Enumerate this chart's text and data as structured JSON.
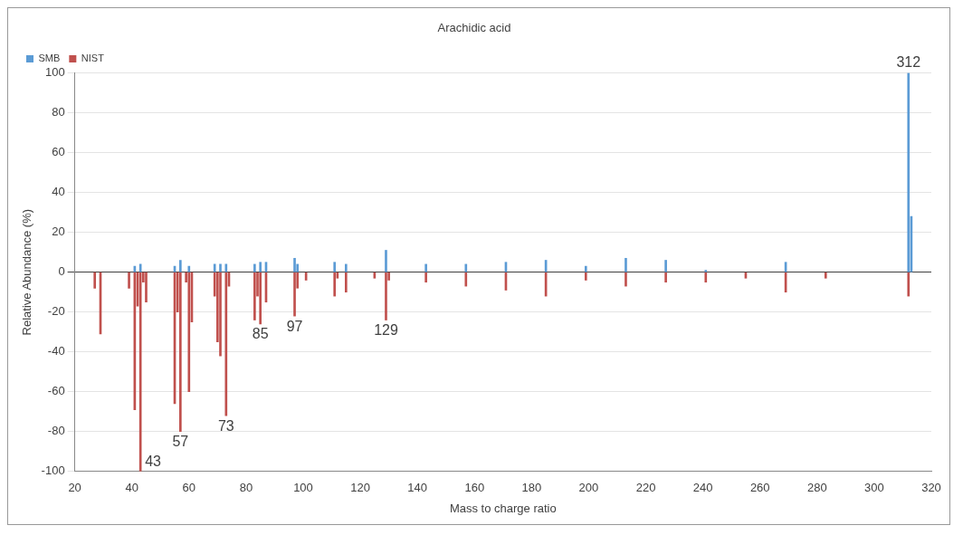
{
  "chart_data": {
    "type": "bar",
    "title": "Arachidic acid",
    "xlabel": "Mass to charge ratio",
    "ylabel": "Relative Abundance (%)",
    "series": [
      {
        "name": "SMB",
        "color": "#5b9bd5",
        "x": [
          41,
          43,
          55,
          57,
          60,
          69,
          71,
          73,
          83,
          85,
          87,
          97,
          98,
          111,
          115,
          129,
          143,
          157,
          171,
          185,
          199,
          213,
          227,
          241,
          269,
          312,
          313
        ],
        "values": [
          3,
          4,
          3,
          6,
          3,
          4,
          4,
          4,
          4,
          5,
          5,
          7,
          4,
          5,
          4,
          11,
          4,
          4,
          5,
          6,
          3,
          7,
          6,
          1,
          5,
          100,
          28
        ]
      },
      {
        "name": "NIST",
        "color": "#c0504d",
        "x": [
          27,
          29,
          39,
          41,
          42,
          43,
          44,
          45,
          55,
          56,
          57,
          59,
          60,
          61,
          69,
          70,
          71,
          73,
          74,
          83,
          84,
          85,
          87,
          97,
          98,
          101,
          111,
          112,
          115,
          125,
          129,
          130,
          143,
          157,
          171,
          185,
          199,
          213,
          227,
          241,
          255,
          269,
          283,
          312
        ],
        "values": [
          -8,
          -31,
          -8,
          -69,
          -17,
          -100,
          -5,
          -15,
          -66,
          -20,
          -80,
          -5,
          -60,
          -25,
          -12,
          -35,
          -42,
          -72,
          -7,
          -24,
          -12,
          -26,
          -15,
          -22,
          -8,
          -4,
          -12,
          -3,
          -10,
          -3,
          -24,
          -4,
          -5,
          -7,
          -9,
          -12,
          -4,
          -7,
          -5,
          -5,
          -3,
          -10,
          -3,
          -12
        ]
      }
    ],
    "xlim": [
      20,
      320
    ],
    "xticks": [
      20,
      40,
      60,
      80,
      100,
      120,
      140,
      160,
      180,
      200,
      220,
      240,
      260,
      280,
      300,
      320
    ],
    "ylim": [
      -100,
      100
    ],
    "yticks": [
      -100,
      -80,
      -60,
      -40,
      -20,
      0,
      20,
      40,
      60,
      80,
      100
    ],
    "grid": "y",
    "legend": "top left",
    "annotations": [
      {
        "text": "312",
        "x": 312,
        "y": 100
      },
      {
        "text": "43",
        "x": 43,
        "y": -100
      },
      {
        "text": "57",
        "x": 57,
        "y": -80
      },
      {
        "text": "73",
        "x": 73,
        "y": -72
      },
      {
        "text": "85",
        "x": 85,
        "y": -26
      },
      {
        "text": "97",
        "x": 97,
        "y": -22
      },
      {
        "text": "129",
        "x": 129,
        "y": -24
      }
    ]
  }
}
